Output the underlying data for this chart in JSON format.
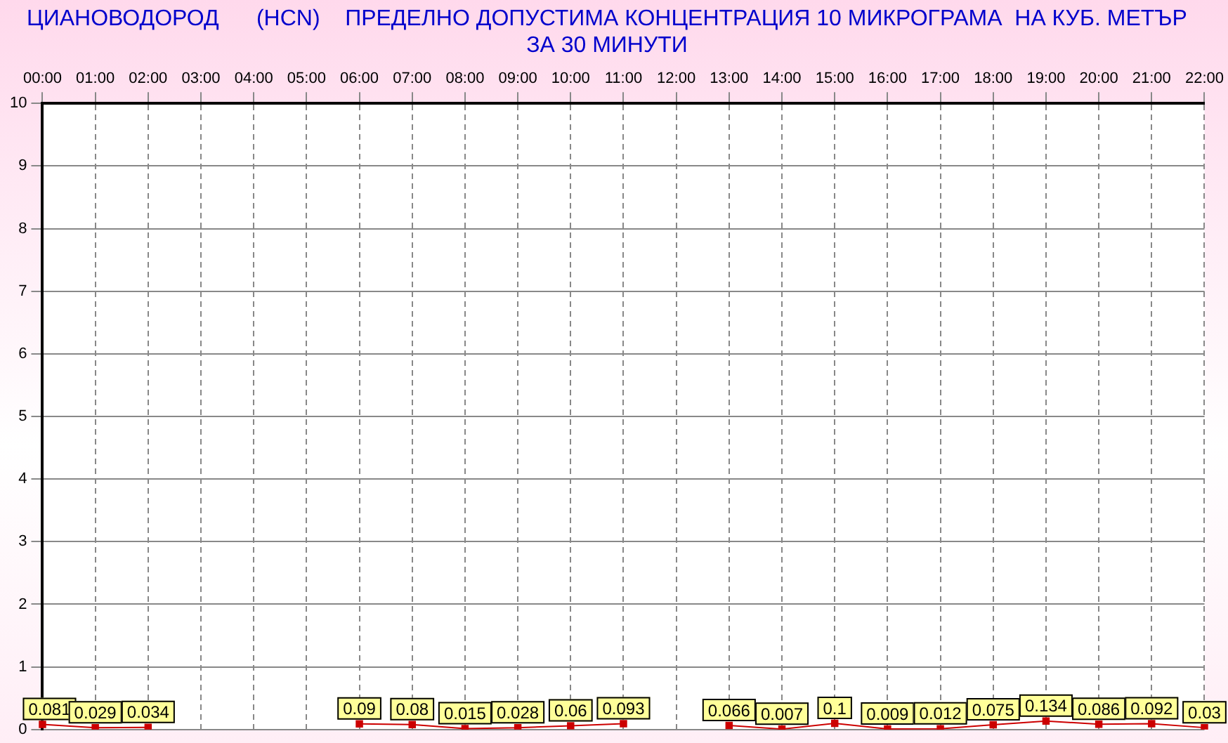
{
  "chart_data": {
    "type": "line",
    "title": [
      "ЦИАНОВОДОРОД      (HCN)    ПРЕДЕЛНО ДОПУСТИМА КОНЦЕНТРАЦИЯ 10 МИКРОГРАМА  НА КУБ. МЕТЪР",
      "ЗА 30 МИНУТИ"
    ],
    "categories": [
      "00:00",
      "01:00",
      "02:00",
      "03:00",
      "04:00",
      "05:00",
      "06:00",
      "07:00",
      "08:00",
      "09:00",
      "10:00",
      "11:00",
      "12:00",
      "13:00",
      "14:00",
      "15:00",
      "16:00",
      "17:00",
      "18:00",
      "19:00",
      "20:00",
      "21:00",
      "22:00"
    ],
    "series": [
      {
        "color": "#cc0000",
        "values": [
          0.081,
          0.029,
          0.034,
          null,
          null,
          null,
          0.09,
          0.08,
          0.015,
          0.028,
          0.06,
          0.093,
          null,
          0.066,
          0.007,
          0.1,
          0.009,
          0.012,
          0.075,
          0.134,
          0.086,
          0.092,
          0.03
        ]
      }
    ],
    "ylim": [
      0,
      10
    ],
    "yticks": [
      0,
      1,
      2,
      3,
      4,
      5,
      6,
      7,
      8,
      9,
      10
    ],
    "grid": true,
    "legend": false,
    "marker": "square",
    "data_labels": true
  }
}
